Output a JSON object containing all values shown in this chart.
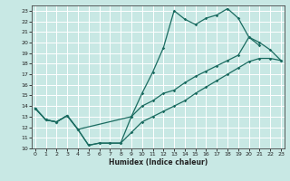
{
  "xlabel": "Humidex (Indice chaleur)",
  "xlim": [
    -0.3,
    23.3
  ],
  "ylim": [
    10,
    23.5
  ],
  "xticks": [
    0,
    1,
    2,
    3,
    4,
    5,
    6,
    7,
    8,
    9,
    10,
    11,
    12,
    13,
    14,
    15,
    16,
    17,
    18,
    19,
    20,
    21,
    22,
    23
  ],
  "yticks": [
    10,
    11,
    12,
    13,
    14,
    15,
    16,
    17,
    18,
    19,
    20,
    21,
    22,
    23
  ],
  "bg_color": "#c8e8e4",
  "grid_color": "#ffffff",
  "line_color": "#1a6b60",
  "line1_x": [
    0,
    1,
    2,
    3,
    4,
    5,
    6,
    7,
    8,
    9,
    10,
    11,
    12,
    13,
    14,
    15,
    16,
    17,
    18,
    19,
    20,
    21,
    22,
    23
  ],
  "line1_y": [
    13.8,
    12.7,
    12.5,
    13.1,
    11.8,
    10.3,
    10.5,
    10.5,
    10.5,
    11.5,
    12.5,
    13.0,
    13.5,
    14.0,
    14.5,
    15.2,
    15.8,
    16.4,
    17.0,
    17.6,
    18.2,
    18.5,
    18.5,
    18.3
  ],
  "line2_x": [
    0,
    1,
    2,
    3,
    4,
    5,
    6,
    7,
    8,
    9,
    10,
    11,
    12,
    13,
    14,
    15,
    16,
    17,
    18,
    19,
    20,
    21
  ],
  "line2_y": [
    13.8,
    12.7,
    12.5,
    13.1,
    11.8,
    10.3,
    10.5,
    10.5,
    10.5,
    13.0,
    15.2,
    17.2,
    19.5,
    23.0,
    22.2,
    21.7,
    22.3,
    22.6,
    23.2,
    22.3,
    20.5,
    19.7
  ],
  "line3_x": [
    0,
    1,
    2,
    3,
    4,
    9,
    10,
    11,
    12,
    13,
    14,
    15,
    16,
    17,
    18,
    19,
    20,
    21,
    22,
    23
  ],
  "line3_y": [
    13.8,
    12.7,
    12.5,
    13.1,
    11.8,
    13.0,
    14.0,
    14.5,
    15.2,
    15.5,
    16.2,
    16.8,
    17.3,
    17.8,
    18.3,
    18.8,
    20.5,
    20.0,
    19.3,
    18.3
  ]
}
